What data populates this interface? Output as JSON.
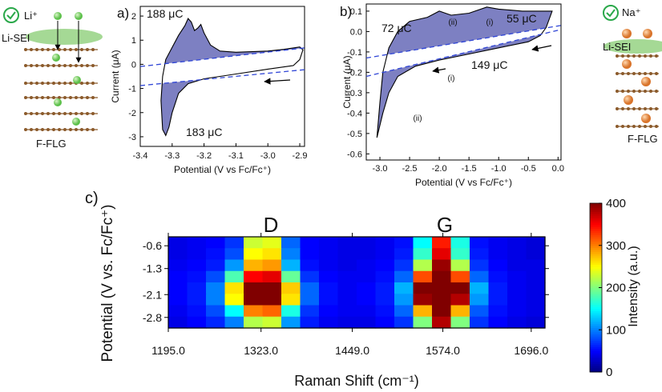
{
  "schematics": {
    "left": {
      "ion": "Li⁺",
      "sei": "Li-SEI",
      "substrate": "F-FLG"
    },
    "right": {
      "ion": "Na⁺",
      "sei": "Li-SEI",
      "substrate": "F-FLG"
    }
  },
  "chart_data": [
    {
      "type": "line",
      "panel_label": "a)",
      "xlabel": "Potential (V vs Fc/Fc⁺)",
      "ylabel": "Current (μA)",
      "xlim": [
        -3.4,
        -2.885
      ],
      "ylim": [
        -3.4,
        2.4
      ],
      "xticks": [
        -3.4,
        -3.3,
        -3.2,
        -3.1,
        {
          "value": -3,
          "label": "-3.0"
        },
        -2.9
      ],
      "yticks": [
        2,
        1,
        0,
        -1,
        -2,
        -3
      ],
      "fill": "#7d80c2",
      "series": [
        {
          "color": "#000000",
          "x": [
            -2.92,
            -3.0,
            -3.1,
            -3.2,
            -3.25,
            -3.28,
            -3.3,
            -3.31,
            -3.32,
            -3.33,
            -3.335,
            -3.33,
            -3.32,
            -3.3,
            -3.28,
            -3.26,
            -3.25,
            -3.24,
            -3.23,
            -3.22,
            -3.21,
            -3.2,
            -3.18,
            -3.15,
            -3.1,
            -3.0,
            -2.95,
            -2.9,
            -2.89,
            -2.9,
            -2.92
          ],
          "values": [
            -0.05,
            -0.2,
            -0.4,
            -0.6,
            -0.8,
            -1.2,
            -2.0,
            -2.6,
            -2.95,
            -2.7,
            -1.5,
            -0.5,
            0.2,
            0.7,
            1.2,
            1.6,
            1.9,
            1.75,
            1.4,
            1.5,
            1.65,
            1.3,
            0.8,
            0.55,
            0.5,
            0.55,
            0.62,
            0.72,
            0.6,
            0.2,
            -0.05
          ]
        },
        {
          "color": "#2f45d6",
          "dashed": true,
          "x": [
            -3.4,
            -2.885
          ],
          "values": [
            -0.09,
            0.68
          ]
        },
        {
          "color": "#2f45d6",
          "dashed": true,
          "x": [
            -3.4,
            -2.885
          ],
          "values": [
            -0.88,
            -0.22
          ]
        }
      ],
      "annotations": [
        "188 μC",
        "183 μC"
      ]
    },
    {
      "type": "line",
      "panel_label": "b)",
      "xlabel": "Potential (V vs Fc/Fc⁺)",
      "ylabel": "Current (μA)",
      "xlim": [
        -3.23,
        0.05
      ],
      "ylim": [
        -0.63,
        0.135
      ],
      "xticks": [
        {
          "value": -3,
          "label": "-3.0"
        },
        -2.5,
        {
          "value": -2,
          "label": "-2.0"
        },
        -1.5,
        {
          "value": -1,
          "label": "-1.0"
        },
        -0.5,
        {
          "value": 0,
          "label": "0.0"
        }
      ],
      "yticks": [
        0.1,
        {
          "value": 0,
          "label": "0.0"
        },
        -0.1,
        -0.2,
        -0.3,
        -0.4,
        -0.5,
        -0.6
      ],
      "fill": "#7d80c2",
      "series": [
        {
          "color": "#000000",
          "x": [
            -0.1,
            -0.2,
            -0.3,
            -0.5,
            -1.0,
            -1.5,
            -2.0,
            -2.4,
            -2.7,
            -2.85,
            -2.95,
            -3.05,
            -3.0,
            -2.95,
            -2.85,
            -2.7,
            -2.5,
            -2.2,
            -2.0,
            -1.8,
            -1.5,
            -1.2,
            -1.0,
            -0.6,
            -0.1
          ],
          "values": [
            0.1,
            0.02,
            -0.02,
            -0.05,
            -0.08,
            -0.11,
            -0.14,
            -0.17,
            -0.22,
            -0.3,
            -0.4,
            -0.52,
            -0.35,
            -0.2,
            -0.08,
            0.0,
            0.05,
            0.07,
            0.1,
            0.08,
            0.09,
            0.12,
            0.11,
            0.1,
            0.1
          ]
        },
        {
          "color": "#2f45d6",
          "dashed": true,
          "x": [
            -3.23,
            0.05
          ],
          "values": [
            -0.13,
            0.03
          ]
        },
        {
          "color": "#2f45d6",
          "dashed": true,
          "x": [
            -3.23,
            0.05
          ],
          "values": [
            -0.22,
            0.01
          ]
        }
      ],
      "annotations": [
        "72 μC",
        "(ii)",
        "(i)",
        "55 μC",
        "149 μC",
        "(i)",
        "(ii)"
      ]
    },
    {
      "type": "heatmap",
      "panel_label": "c)",
      "xlabel": "Raman Shift (cm⁻¹)",
      "ylabel": "Potential (V vs. Fc/Fc⁺)",
      "xlim": [
        1195,
        1715
      ],
      "ylim": [
        -3.125,
        -0.325
      ],
      "xticks": [
        {
          "value": 1195,
          "label": "1195.0"
        },
        {
          "value": 1323,
          "label": "1323.0"
        },
        {
          "value": 1449,
          "label": "1449.0"
        },
        {
          "value": 1574,
          "label": "1574.0"
        },
        {
          "value": 1696,
          "label": "1696.0"
        }
      ],
      "yticks": [
        -0.6,
        -1.3,
        -2.1,
        -2.8
      ],
      "x": [
        1208,
        1234,
        1260,
        1286,
        1312,
        1338,
        1364,
        1390,
        1416,
        1442,
        1468,
        1494,
        1520,
        1546,
        1572,
        1598,
        1624,
        1650,
        1676,
        1702
      ],
      "y": [
        -0.5,
        -0.85,
        -1.2,
        -1.55,
        -1.9,
        -2.25,
        -2.6,
        -2.95
      ],
      "values": [
        [
          40,
          45,
          50,
          70,
          230,
          240,
          90,
          50,
          45,
          40,
          40,
          45,
          55,
          150,
          340,
          160,
          55,
          45,
          40,
          35
        ],
        [
          40,
          45,
          55,
          80,
          250,
          260,
          100,
          50,
          45,
          40,
          40,
          45,
          60,
          170,
          360,
          170,
          60,
          45,
          40,
          35
        ],
        [
          45,
          50,
          60,
          110,
          280,
          290,
          120,
          55,
          45,
          40,
          45,
          50,
          70,
          220,
          390,
          220,
          70,
          50,
          40,
          40
        ],
        [
          50,
          55,
          80,
          180,
          350,
          360,
          190,
          70,
          50,
          45,
          45,
          55,
          90,
          320,
          400,
          320,
          90,
          55,
          45,
          40
        ],
        [
          50,
          60,
          100,
          260,
          400,
          400,
          270,
          90,
          55,
          45,
          50,
          60,
          120,
          400,
          400,
          400,
          120,
          60,
          45,
          40
        ],
        [
          50,
          60,
          100,
          250,
          400,
          400,
          260,
          90,
          55,
          45,
          50,
          60,
          110,
          390,
          400,
          380,
          110,
          60,
          45,
          40
        ],
        [
          45,
          55,
          80,
          150,
          300,
          310,
          160,
          70,
          50,
          45,
          45,
          55,
          90,
          280,
          400,
          280,
          85,
          55,
          45,
          40
        ],
        [
          40,
          50,
          65,
          100,
          220,
          230,
          110,
          60,
          45,
          40,
          40,
          50,
          70,
          200,
          380,
          200,
          70,
          50,
          40,
          35
        ]
      ],
      "colormap": "jet",
      "zlim": [
        0,
        400
      ],
      "zticks": [
        0,
        100,
        200,
        300,
        400
      ],
      "zlabel": "Intensity (a.u.)",
      "annotations": [
        "D",
        "G"
      ]
    }
  ]
}
